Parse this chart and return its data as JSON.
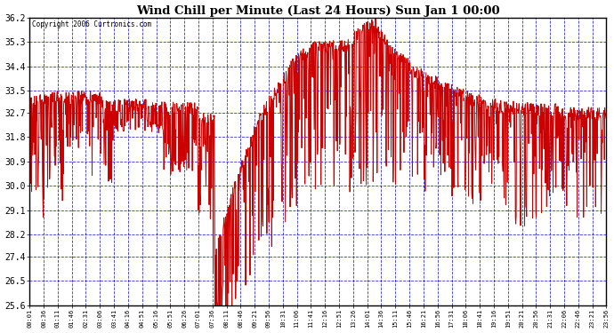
{
  "title": "Wind Chill per Minute (Last 24 Hours) Sun Jan 1 00:00",
  "copyright": "Copyright 2006 Curtronics.com",
  "ylim": [
    25.6,
    36.2
  ],
  "yticks": [
    25.6,
    26.5,
    27.4,
    28.2,
    29.1,
    30.0,
    30.9,
    31.8,
    32.7,
    33.5,
    34.4,
    35.3,
    36.2
  ],
  "bg_color": "#ffffff",
  "plot_bg_color": "#ffffff",
  "grid_color": "#0000cc",
  "line_color": "#cc0000",
  "title_color": "#000000",
  "xtick_labels": [
    "00:01",
    "00:36",
    "01:11",
    "01:46",
    "02:31",
    "03:06",
    "03:41",
    "04:16",
    "04:51",
    "05:16",
    "05:51",
    "06:26",
    "07:01",
    "07:36",
    "08:11",
    "08:46",
    "09:21",
    "09:56",
    "10:31",
    "11:06",
    "11:41",
    "12:16",
    "12:51",
    "13:26",
    "14:01",
    "14:36",
    "15:11",
    "15:46",
    "16:21",
    "16:56",
    "17:31",
    "18:06",
    "18:41",
    "19:16",
    "19:51",
    "20:21",
    "20:56",
    "21:31",
    "22:06",
    "22:46",
    "23:21",
    "23:56"
  ],
  "num_points": 1440,
  "seed": 42
}
